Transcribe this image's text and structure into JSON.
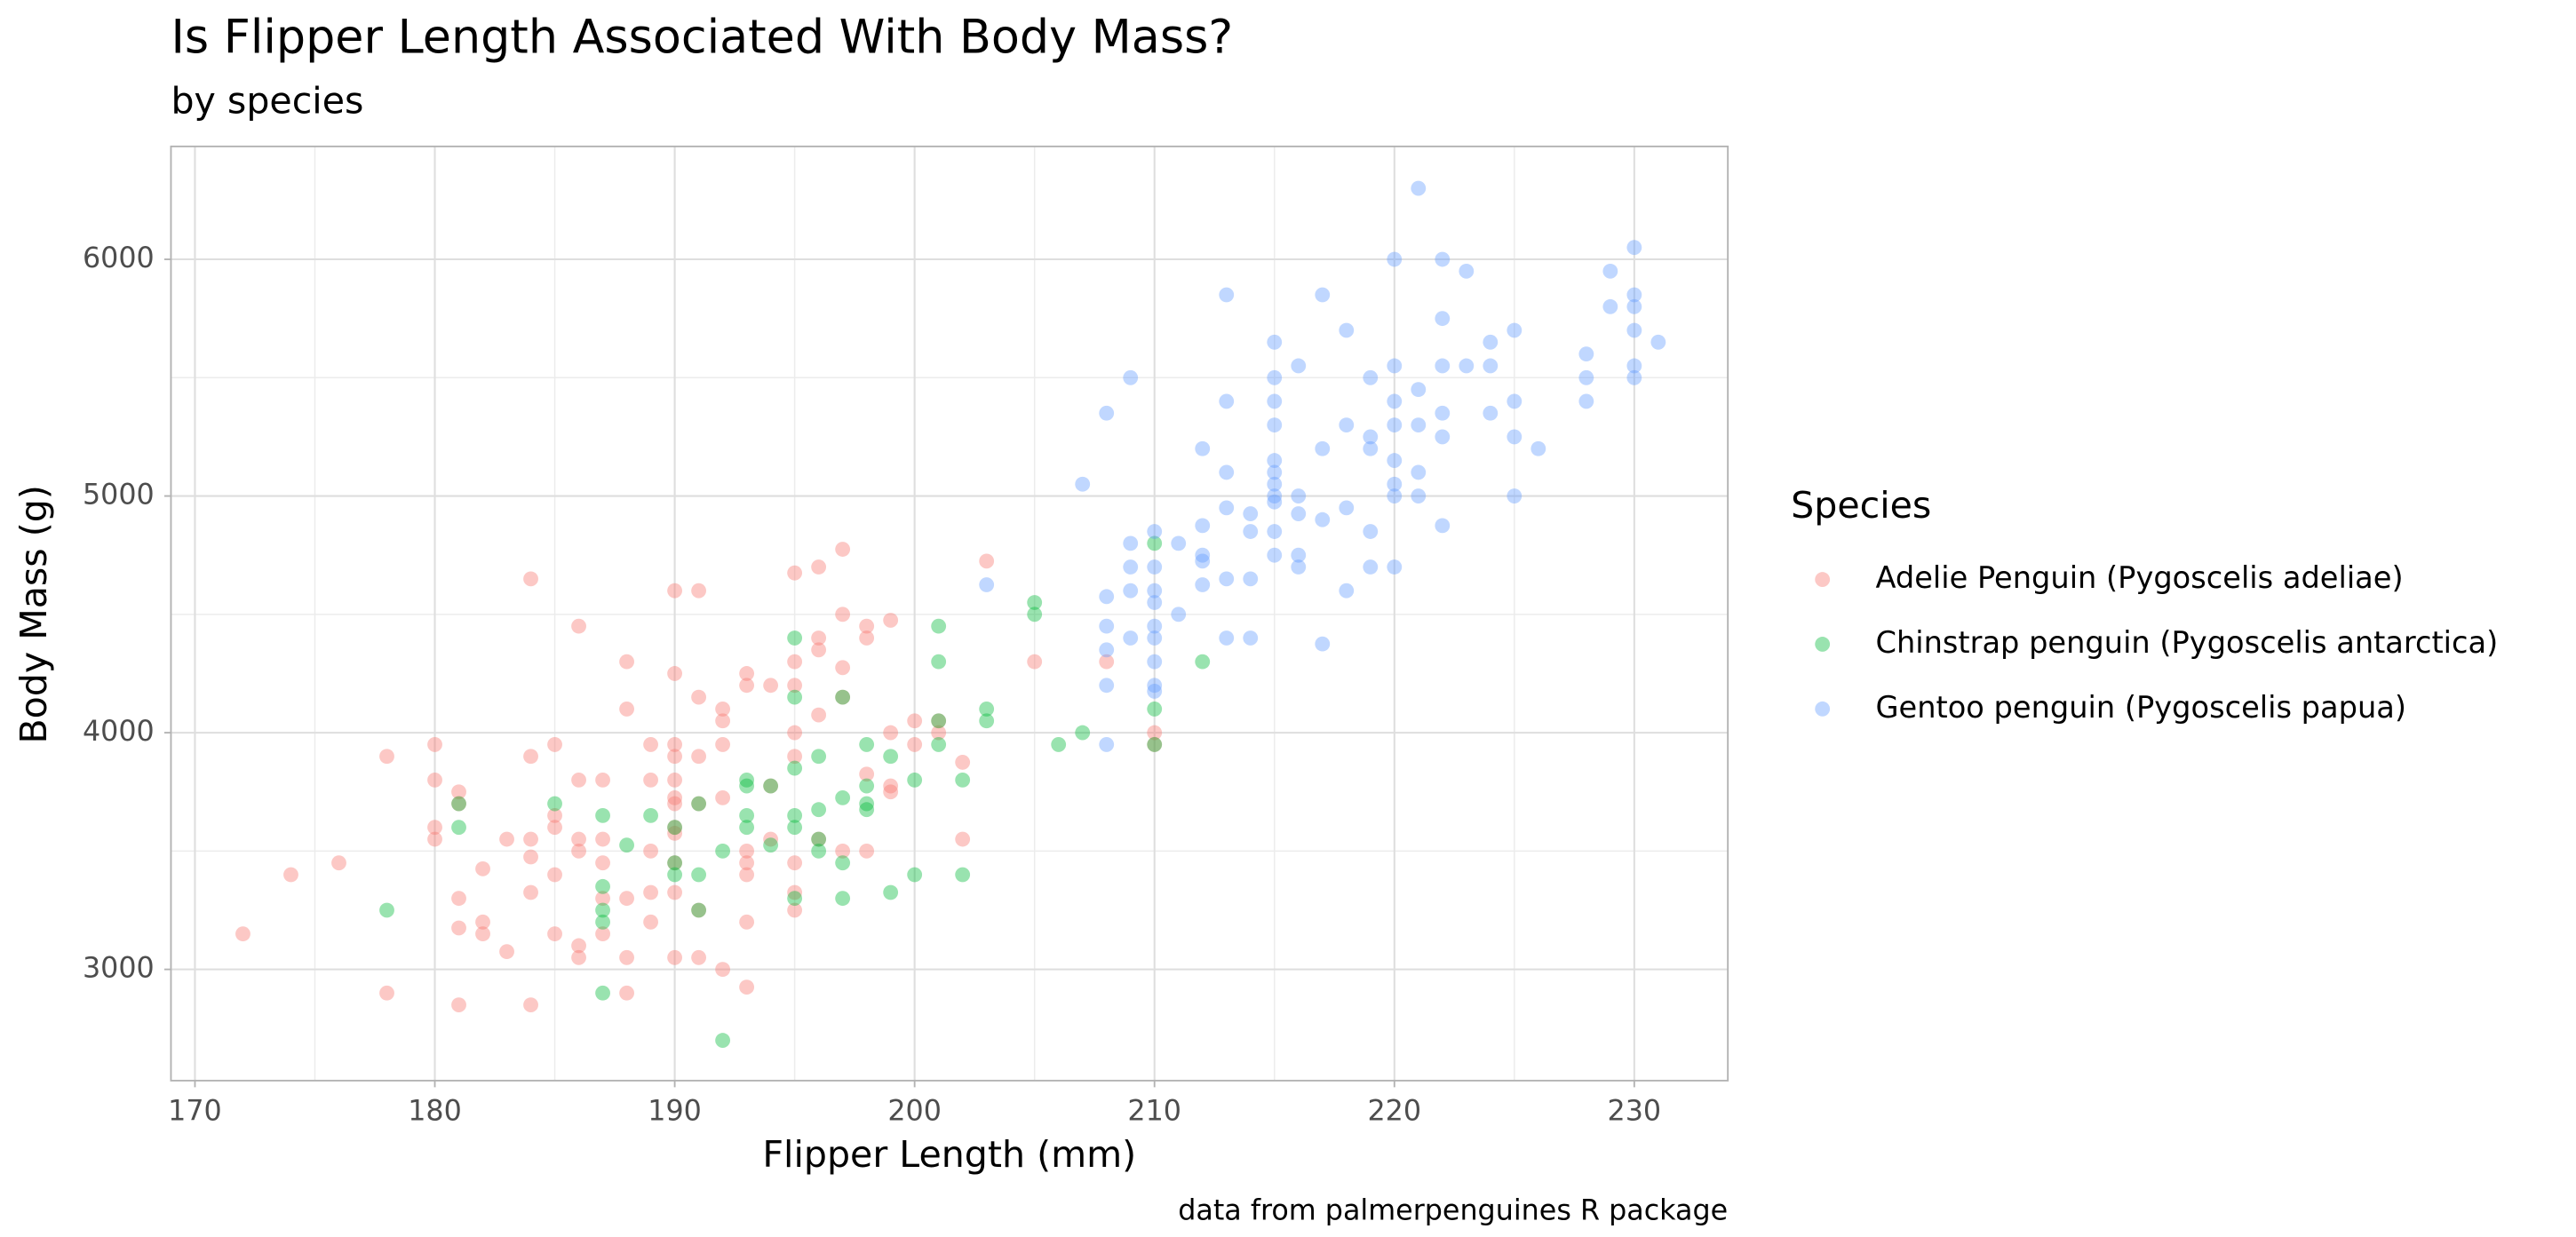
{
  "chart_data": {
    "type": "scatter",
    "title": "Is Flipper Length Associated With Body Mass?",
    "subtitle": "by species",
    "x_label": "Flipper Length (mm)",
    "y_label": "Body Mass (g)",
    "caption": "data from palmerpenguines R package",
    "legend_title": "Species",
    "legend_position": "right",
    "grid": true,
    "xlim": [
      169,
      233.9
    ],
    "ylim": [
      2530,
      6477
    ],
    "xticks": [
      170,
      180,
      190,
      200,
      210,
      220,
      230
    ],
    "yticks": [
      3000,
      4000,
      5000,
      6000
    ],
    "series": [
      {
        "name": "Adelie Penguin (Pygoscelis adeliae)",
        "color": "#F8766D",
        "x": [
          172,
          174,
          176,
          178,
          178,
          180,
          180,
          180,
          180,
          181,
          181,
          181,
          181,
          181,
          182,
          182,
          182,
          183,
          183,
          184,
          184,
          184,
          184,
          184,
          184,
          185,
          185,
          185,
          185,
          185,
          186,
          186,
          186,
          186,
          186,
          186,
          187,
          187,
          187,
          187,
          187,
          188,
          188,
          188,
          188,
          188,
          189,
          189,
          189,
          189,
          189,
          190,
          190,
          190,
          190,
          190,
          190,
          190,
          190,
          190,
          190,
          190,
          190,
          191,
          191,
          191,
          191,
          191,
          191,
          192,
          192,
          192,
          192,
          192,
          193,
          193,
          193,
          193,
          193,
          193,
          193,
          194,
          194,
          194,
          195,
          195,
          195,
          195,
          195,
          195,
          195,
          195,
          196,
          196,
          196,
          196,
          196,
          197,
          197,
          197,
          197,
          197,
          198,
          198,
          198,
          198,
          199,
          199,
          199,
          199,
          200,
          200,
          201,
          201,
          202,
          202,
          203,
          205,
          208,
          210,
          210
        ],
        "values": [
          3150,
          3400,
          3450,
          3900,
          2900,
          3950,
          3800,
          3600,
          3550,
          3750,
          3700,
          3300,
          3175,
          2850,
          3425,
          3200,
          3150,
          3550,
          3075,
          4650,
          3900,
          3550,
          3475,
          3325,
          2850,
          3950,
          3650,
          3600,
          3400,
          3150,
          4450,
          3800,
          3550,
          3500,
          3100,
          3050,
          3800,
          3550,
          3450,
          3300,
          3150,
          4300,
          4100,
          3300,
          3050,
          2900,
          3950,
          3800,
          3500,
          3325,
          3200,
          4600,
          4250,
          3950,
          3900,
          3800,
          3725,
          3700,
          3600,
          3575,
          3450,
          3325,
          3050,
          4600,
          4150,
          3900,
          3700,
          3250,
          3050,
          4100,
          4050,
          3950,
          3725,
          3000,
          4250,
          4200,
          3500,
          3450,
          3400,
          3200,
          2925,
          4200,
          3775,
          3550,
          4675,
          4300,
          4200,
          4000,
          3900,
          3450,
          3325,
          3250,
          4700,
          4400,
          4350,
          4075,
          3550,
          4775,
          4500,
          4275,
          4150,
          3500,
          4450,
          4400,
          3825,
          3500,
          4475,
          4000,
          3775,
          3750,
          4050,
          3950,
          4050,
          4000,
          3875,
          3550,
          4725,
          4300,
          4300,
          4000,
          3950
        ]
      },
      {
        "name": "Chinstrap penguin (Pygoscelis antarctica)",
        "color": "#00BA38",
        "x": [
          178,
          181,
          181,
          185,
          187,
          187,
          187,
          187,
          187,
          188,
          189,
          190,
          190,
          190,
          191,
          191,
          191,
          192,
          192,
          193,
          193,
          193,
          193,
          194,
          194,
          195,
          195,
          195,
          195,
          195,
          195,
          196,
          196,
          196,
          196,
          197,
          197,
          197,
          197,
          198,
          198,
          198,
          198,
          199,
          199,
          200,
          200,
          201,
          201,
          201,
          201,
          202,
          202,
          203,
          203,
          205,
          205,
          206,
          207,
          210,
          210,
          210,
          212
        ],
        "values": [
          3250,
          3700,
          3600,
          3700,
          3650,
          3350,
          3250,
          3200,
          2900,
          3525,
          3650,
          3600,
          3450,
          3400,
          3700,
          3400,
          3250,
          3500,
          2700,
          3800,
          3775,
          3650,
          3600,
          3775,
          3525,
          4400,
          4150,
          3850,
          3650,
          3600,
          3300,
          3900,
          3675,
          3550,
          3500,
          4150,
          3725,
          3450,
          3300,
          3950,
          3775,
          3700,
          3675,
          3900,
          3325,
          3800,
          3400,
          4450,
          4300,
          4050,
          3950,
          3800,
          3400,
          4100,
          4050,
          4550,
          4500,
          3950,
          4000,
          4800,
          4100,
          3950,
          4300
        ]
      },
      {
        "name": "Gentoo penguin (Pygoscelis papua)",
        "color": "#619CFF",
        "x": [
          203,
          207,
          208,
          208,
          208,
          208,
          208,
          208,
          209,
          209,
          209,
          209,
          209,
          210,
          210,
          210,
          210,
          210,
          210,
          210,
          210,
          210,
          211,
          211,
          212,
          212,
          212,
          212,
          212,
          213,
          213,
          213,
          213,
          213,
          213,
          214,
          214,
          214,
          214,
          215,
          215,
          215,
          215,
          215,
          215,
          215,
          215,
          215,
          215,
          215,
          216,
          216,
          216,
          216,
          216,
          217,
          217,
          217,
          217,
          218,
          218,
          218,
          218,
          219,
          219,
          219,
          219,
          219,
          220,
          220,
          220,
          220,
          220,
          220,
          220,
          220,
          221,
          221,
          221,
          221,
          221,
          222,
          222,
          222,
          222,
          222,
          222,
          223,
          223,
          224,
          224,
          224,
          225,
          225,
          225,
          225,
          226,
          228,
          228,
          228,
          229,
          229,
          230,
          230,
          230,
          230,
          230,
          230,
          231
        ],
        "values": [
          4625,
          5050,
          5350,
          4575,
          4450,
          4350,
          4200,
          3950,
          5500,
          4800,
          4700,
          4600,
          4400,
          4850,
          4700,
          4600,
          4550,
          4450,
          4400,
          4300,
          4200,
          4175,
          4800,
          4500,
          5200,
          4875,
          4750,
          4725,
          4625,
          5850,
          5400,
          5100,
          4950,
          4650,
          4400,
          4925,
          4850,
          4650,
          4400,
          5650,
          5500,
          5400,
          5300,
          5150,
          5100,
          5050,
          5000,
          4975,
          4850,
          4750,
          5550,
          5000,
          4925,
          4750,
          4700,
          5850,
          5200,
          4900,
          4375,
          5700,
          5300,
          4950,
          4600,
          5500,
          5250,
          5200,
          4850,
          4700,
          6000,
          5550,
          5400,
          5300,
          5150,
          5050,
          5000,
          4700,
          6300,
          5450,
          5300,
          5100,
          5000,
          6000,
          5750,
          5550,
          5350,
          5250,
          4875,
          5950,
          5550,
          5650,
          5550,
          5350,
          5700,
          5400,
          5250,
          5000,
          5200,
          5600,
          5500,
          5400,
          5950,
          5800,
          6050,
          5850,
          5800,
          5700,
          5550,
          5500,
          5650
        ]
      }
    ]
  }
}
